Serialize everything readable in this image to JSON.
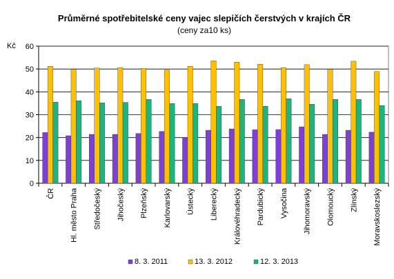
{
  "chart_data": {
    "type": "bar",
    "title": "Průměrné spotřebitelské  ceny vajec slepičích čerstvých  v krajích ČR",
    "subtitle": "(ceny za10  ks)",
    "ylabel": "Kč",
    "xlabel": "",
    "ylim": [
      0,
      60
    ],
    "yticks": [
      0,
      10,
      20,
      30,
      40,
      50,
      60
    ],
    "grid": true,
    "legend_position": "bottom",
    "categories": [
      "ČR",
      "Hl. město Praha",
      "Středočeský",
      "Jihočeský",
      "Plzeňský",
      "Karlovarský",
      "Ústecký",
      "Liberecký",
      "Královéhradecký",
      "Pardubický",
      "Vysočina",
      "Jihomoravský",
      "Olomoucký",
      "Zlínský",
      "Moravskoslezský"
    ],
    "series": [
      {
        "name": "8. 3. 2011",
        "color": "#7e3fd7",
        "values": [
          22.2,
          20.8,
          21.4,
          21.4,
          21.8,
          22.7,
          20.1,
          23.2,
          23.8,
          23.4,
          23.5,
          24.7,
          21.4,
          23.2,
          22.4
        ]
      },
      {
        "name": "13. 3. 2012",
        "color": "#ffc000",
        "values": [
          51.2,
          49.9,
          50.4,
          50.6,
          50.3,
          49.5,
          51.2,
          53.6,
          53.0,
          52.1,
          50.6,
          51.9,
          49.9,
          53.4,
          48.9
        ]
      },
      {
        "name": "12. 3. 2013",
        "color": "#1fb37e",
        "values": [
          35.5,
          36.1,
          35.2,
          35.4,
          36.7,
          34.9,
          34.9,
          33.7,
          36.7,
          33.7,
          37.0,
          34.6,
          36.7,
          36.7,
          34.0
        ]
      }
    ]
  }
}
